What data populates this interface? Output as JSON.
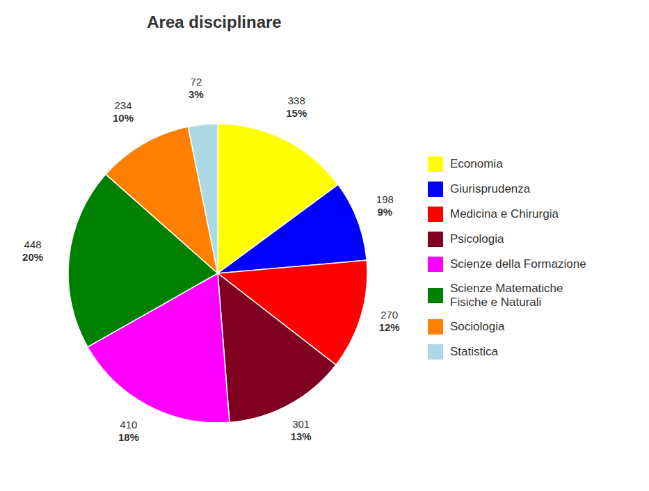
{
  "chart_data": {
    "type": "pie",
    "title": "Area disciplinare",
    "categories": [
      "Economia",
      "Giurisprudenza",
      "Medicina e Chirurgia",
      "Psicologia",
      "Scienze della Formazione",
      "Scienze Matematiche\nFisiche e Naturali",
      "Sociologia",
      "Statistica"
    ],
    "values": [
      338,
      198,
      270,
      301,
      410,
      448,
      234,
      72
    ],
    "percentages": [
      15,
      9,
      12,
      13,
      18,
      20,
      10,
      3
    ],
    "percentage_labels": [
      "15%",
      "9%",
      "12%",
      "13%",
      "18%",
      "20%",
      "10%",
      "3%"
    ],
    "colors": [
      "#FFFF00",
      "#0000FF",
      "#FF0000",
      "#800020",
      "#FF00FF",
      "#008000",
      "#FF8000",
      "#ADD8E6"
    ],
    "data_labels": true,
    "legend": "right"
  }
}
